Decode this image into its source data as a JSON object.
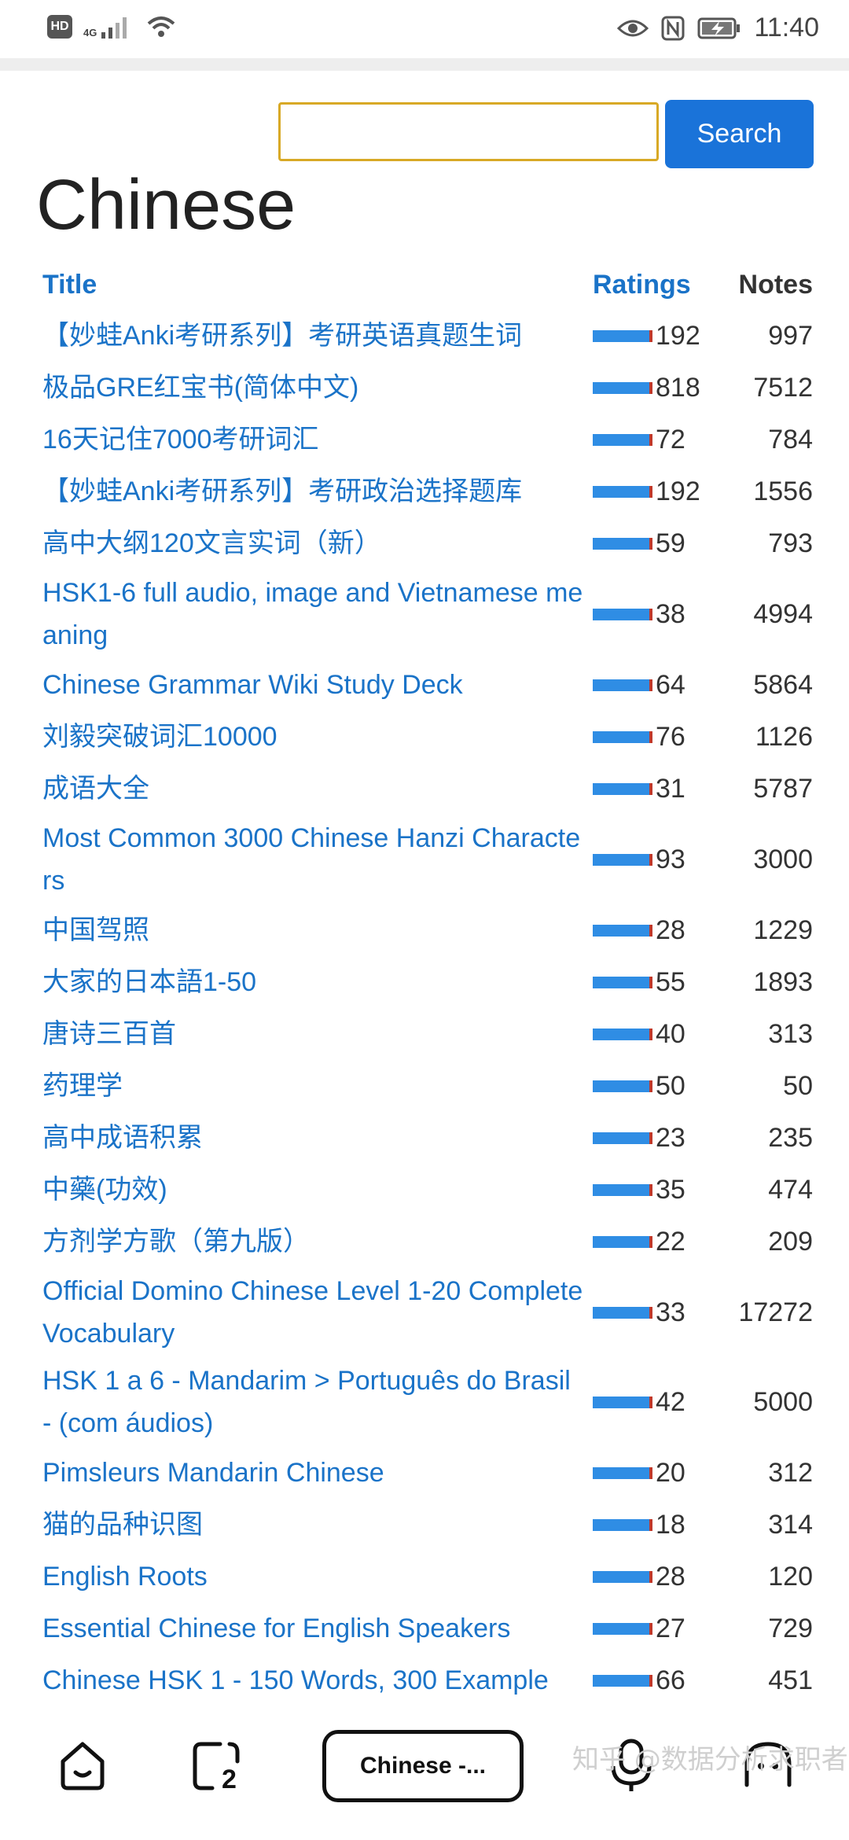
{
  "status_bar": {
    "hd": "HD",
    "network": "4G",
    "time": "11:40"
  },
  "search": {
    "value": "",
    "placeholder": "",
    "button_label": "Search"
  },
  "page": {
    "title": "Chinese"
  },
  "table": {
    "headers": {
      "title": "Title",
      "ratings": "Ratings",
      "notes": "Notes"
    },
    "rows": [
      {
        "title": "【妙蛙Anki考研系列】考研英语真题生词",
        "ratings": "192",
        "notes": "997",
        "lines": 1
      },
      {
        "title": "极品GRE红宝书(简体中文)",
        "ratings": "818",
        "notes": "7512",
        "lines": 1
      },
      {
        "title": "16天记住7000考研词汇",
        "ratings": "72",
        "notes": "784",
        "lines": 1
      },
      {
        "title": "【妙蛙Anki考研系列】考研政治选择题库",
        "ratings": "192",
        "notes": "1556",
        "lines": 1
      },
      {
        "title": "高中大纲120文言实词（新）",
        "ratings": "59",
        "notes": "793",
        "lines": 1
      },
      {
        "title": "HSK1-6 full audio, image and Vietnamese meaning",
        "ratings": "38",
        "notes": "4994",
        "lines": 2
      },
      {
        "title": "Chinese Grammar Wiki Study Deck",
        "ratings": "64",
        "notes": "5864",
        "lines": 1
      },
      {
        "title": "刘毅突破词汇10000",
        "ratings": "76",
        "notes": "1126",
        "lines": 1
      },
      {
        "title": "成语大全",
        "ratings": "31",
        "notes": "5787",
        "lines": 1
      },
      {
        "title": "Most Common 3000 Chinese Hanzi Characters",
        "ratings": "93",
        "notes": "3000",
        "lines": 2
      },
      {
        "title": "中国驾照",
        "ratings": "28",
        "notes": "1229",
        "lines": 1
      },
      {
        "title": "大家的日本語1-50",
        "ratings": "55",
        "notes": "1893",
        "lines": 1
      },
      {
        "title": "唐诗三百首",
        "ratings": "40",
        "notes": "313",
        "lines": 1
      },
      {
        "title": "药理学",
        "ratings": "50",
        "notes": "50",
        "lines": 1
      },
      {
        "title": "高中成语积累",
        "ratings": "23",
        "notes": "235",
        "lines": 1
      },
      {
        "title": "中藥(功效)",
        "ratings": "35",
        "notes": "474",
        "lines": 1
      },
      {
        "title": "方剂学方歌（第九版）",
        "ratings": "22",
        "notes": "209",
        "lines": 1
      },
      {
        "title": "Official Domino Chinese Level 1-20 Complete Vocabulary",
        "ratings": "33",
        "notes": "17272",
        "lines": 2
      },
      {
        "title": "HSK 1 a 6 - Mandarim > Português do Brasil - (com áudios)",
        "ratings": "42",
        "notes": "5000",
        "lines": 2
      },
      {
        "title": "Pimsleurs Mandarin Chinese",
        "ratings": "20",
        "notes": "312",
        "lines": 1
      },
      {
        "title": "猫的品种识图",
        "ratings": "18",
        "notes": "314",
        "lines": 1
      },
      {
        "title": "English Roots",
        "ratings": "28",
        "notes": "120",
        "lines": 1
      },
      {
        "title": "Essential Chinese for English Speakers",
        "ratings": "27",
        "notes": "729",
        "lines": 1
      },
      {
        "title": "Chinese HSK 1 - 150 Words, 300 Example",
        "ratings": "66",
        "notes": "451",
        "lines": 1
      }
    ]
  },
  "bottom_nav": {
    "home_icon": "home-face-icon",
    "tabs_icon": "tabs-count-icon",
    "tabs_count": "2",
    "active_tab_label": "Chinese -...",
    "mic_icon": "microphone-icon",
    "assistant_icon": "assistant-face-icon"
  },
  "watermark": "知乎 @数据分析求职者",
  "colors": {
    "link": "#1a73c8",
    "button": "#1a73d9",
    "input_border": "#d8a926",
    "bar": "#2f8de4",
    "bar_mark": "#c0392b"
  }
}
